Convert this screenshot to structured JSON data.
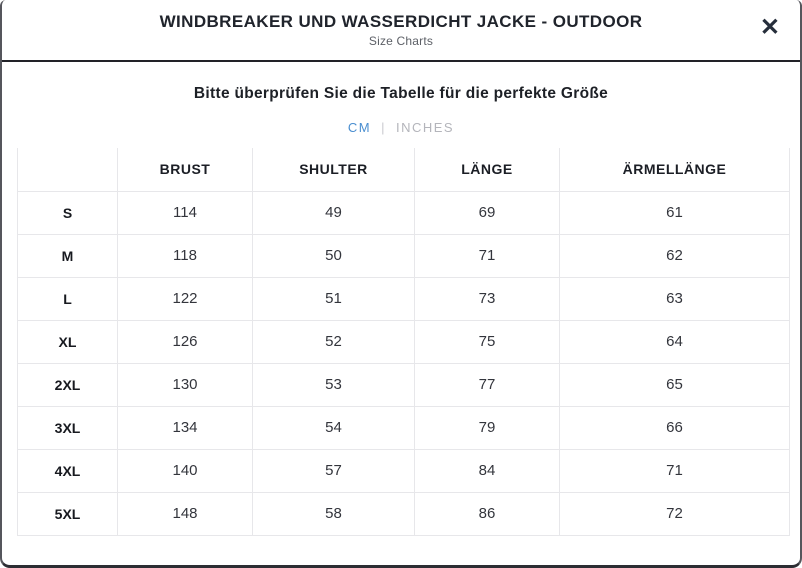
{
  "dialog": {
    "title": "WINDBREAKER UND WASSERDICHT JACKE - OUTDOOR",
    "subtitle": "Size Charts",
    "close_icon": "✕"
  },
  "body": {
    "heading": "Bitte überprüfen Sie die Tabelle für die perfekte Größe",
    "unit_tabs": {
      "active": "CM",
      "inactive": "INCHES",
      "separator": "|"
    }
  },
  "size_table": {
    "columns": [
      "",
      "BRUST",
      "SHULTER",
      "LÄNGE",
      "ÄRMELLÄNGE"
    ],
    "rows": [
      {
        "size": "S",
        "values": [
          "114",
          "49",
          "69",
          "61"
        ]
      },
      {
        "size": "M",
        "values": [
          "118",
          "50",
          "71",
          "62"
        ]
      },
      {
        "size": "L",
        "values": [
          "122",
          "51",
          "73",
          "63"
        ]
      },
      {
        "size": "XL",
        "values": [
          "126",
          "52",
          "75",
          "64"
        ]
      },
      {
        "size": "2XL",
        "values": [
          "130",
          "53",
          "77",
          "65"
        ]
      },
      {
        "size": "3XL",
        "values": [
          "134",
          "54",
          "79",
          "66"
        ]
      },
      {
        "size": "4XL",
        "values": [
          "140",
          "57",
          "84",
          "71"
        ]
      },
      {
        "size": "5XL",
        "values": [
          "148",
          "58",
          "86",
          "72"
        ]
      }
    ]
  },
  "colors": {
    "accent_blue": "#4a8ed0",
    "inactive_gray": "#b4b5bb",
    "dark_text": "#20242c",
    "header_border": "#222228",
    "grid_line": "#e7e7ea"
  }
}
